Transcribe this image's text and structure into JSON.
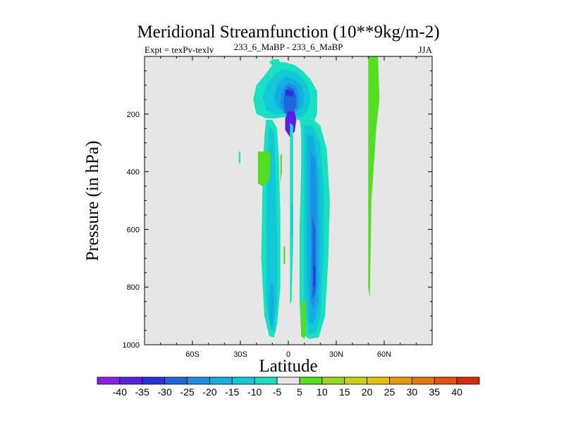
{
  "chart_data": {
    "type": "contour",
    "title": "Meridional Streamfunction (10**9kg/m-2)",
    "subtitle_left": "Expt = texPv-texlv",
    "subtitle_center": "233_6_MaBP - 233_6_MaBP",
    "subtitle_right": "JJA",
    "xlabel": "Latitude",
    "ylabel": "Pressure (in hPa)",
    "xlim": [
      -90,
      90
    ],
    "ylim": [
      0,
      1000
    ],
    "y_inverted": true,
    "x_ticks": [
      {
        "value": -60,
        "label": "60S"
      },
      {
        "value": -30,
        "label": "30S"
      },
      {
        "value": 0,
        "label": "0"
      },
      {
        "value": 30,
        "label": "30N"
      },
      {
        "value": 60,
        "label": "60N"
      }
    ],
    "y_ticks": [
      {
        "value": 200,
        "label": "200"
      },
      {
        "value": 400,
        "label": "400"
      },
      {
        "value": 600,
        "label": "600"
      },
      {
        "value": 800,
        "label": "800"
      },
      {
        "value": 1000,
        "label": "1000"
      }
    ],
    "colorbar": {
      "labels": [
        "-40",
        "-35",
        "-30",
        "-25",
        "-20",
        "-15",
        "-10",
        "-5",
        "5",
        "10",
        "15",
        "20",
        "25",
        "30",
        "35",
        "40"
      ],
      "colors": [
        "#8a1ee6",
        "#5a1ee6",
        "#2233e0",
        "#1f66dd",
        "#1e8fe3",
        "#14aee0",
        "#10c8d8",
        "#1ae0bf",
        "#e6e6e6",
        "#55dd22",
        "#9ad61c",
        "#c8d214",
        "#e3c20e",
        "#e89a0c",
        "#e6780c",
        "#e3520a",
        "#d82a06"
      ]
    },
    "background_color": "#e6e6e6",
    "fields": [
      {
        "name": "upper-cell-outer",
        "level": -5,
        "lat": [
          -7,
          -2,
          4,
          9,
          14,
          18,
          18,
          15,
          10,
          4,
          -2,
          -8,
          -14,
          -20,
          -22,
          -20,
          -14,
          -10
        ],
        "p": [
          20,
          20,
          30,
          50,
          80,
          120,
          200,
          240,
          230,
          215,
          210,
          215,
          215,
          200,
          150,
          100,
          60,
          30
        ]
      },
      {
        "name": "upper-cell-10",
        "level": -10,
        "lat": [
          -3,
          3,
          8,
          12,
          14,
          12,
          8,
          3,
          -3,
          -9,
          -14,
          -16,
          -13,
          -8
        ],
        "p": [
          45,
          50,
          70,
          100,
          140,
          190,
          210,
          205,
          200,
          200,
          185,
          140,
          90,
          60
        ]
      },
      {
        "name": "upper-cell-15",
        "level": -15,
        "lat": [
          -1,
          4,
          8,
          10,
          9,
          6,
          2,
          -3,
          -7,
          -9,
          -7,
          -4
        ],
        "p": [
          70,
          80,
          100,
          130,
          170,
          190,
          195,
          190,
          175,
          140,
          100,
          80
        ]
      },
      {
        "name": "upper-cell-20",
        "level": -20,
        "lat": [
          0,
          4,
          6,
          7,
          6,
          3,
          0,
          -3,
          -5,
          -4,
          -2
        ],
        "p": [
          95,
          100,
          120,
          150,
          180,
          200,
          205,
          195,
          160,
          120,
          100
        ]
      },
      {
        "name": "upper-cell-25",
        "level": -25,
        "lat": [
          0,
          3,
          5,
          5,
          3,
          0,
          -2,
          -3,
          -2
        ],
        "p": [
          105,
          112,
          135,
          170,
          195,
          210,
          195,
          155,
          120
        ]
      },
      {
        "name": "upper-cell-30",
        "level": -30,
        "lat": [
          -2,
          3,
          3,
          -2
        ],
        "p": [
          115,
          120,
          140,
          135
        ]
      },
      {
        "name": "upper-cell-35",
        "level": -35,
        "lat": [
          0,
          4,
          5,
          4,
          1,
          -2,
          -2
        ],
        "p": [
          190,
          192,
          220,
          260,
          280,
          255,
          215
        ]
      },
      {
        "name": "north-column-5",
        "level": -5,
        "lat": [
          7,
          14,
          20,
          24,
          26,
          25,
          23,
          19,
          13,
          8,
          7,
          7,
          8,
          8
        ],
        "p": [
          210,
          210,
          240,
          320,
          500,
          700,
          900,
          975,
          980,
          960,
          850,
          600,
          400,
          260
        ]
      },
      {
        "name": "north-column-10",
        "level": -10,
        "lat": [
          10,
          15,
          20,
          22,
          22,
          20,
          17,
          13,
          10,
          10,
          10
        ],
        "p": [
          240,
          240,
          300,
          450,
          700,
          900,
          960,
          960,
          850,
          600,
          350
        ]
      },
      {
        "name": "north-column-15",
        "level": -15,
        "lat": [
          12,
          16,
          19,
          20,
          19,
          16,
          13,
          12,
          12
        ],
        "p": [
          270,
          280,
          400,
          650,
          850,
          930,
          920,
          750,
          450
        ]
      },
      {
        "name": "north-column-20",
        "level": -20,
        "lat": [
          14,
          17,
          18,
          18,
          16,
          14,
          14
        ],
        "p": [
          330,
          360,
          550,
          800,
          880,
          850,
          550
        ]
      },
      {
        "name": "north-column-25",
        "level": -25,
        "lat": [
          15,
          17,
          17,
          15,
          15
        ],
        "p": [
          550,
          600,
          820,
          840,
          650
        ]
      },
      {
        "name": "north-column-30",
        "level": -30,
        "lat": [
          16,
          17,
          17,
          16
        ],
        "p": [
          720,
          730,
          800,
          800
        ]
      },
      {
        "name": "south-column-5",
        "level": -5,
        "lat": [
          -14,
          -10,
          -7,
          -6,
          -5,
          -5,
          -7,
          -9,
          -12,
          -15,
          -17,
          -16,
          -15
        ],
        "p": [
          220,
          220,
          250,
          350,
          550,
          800,
          930,
          975,
          970,
          900,
          700,
          400,
          280
        ]
      },
      {
        "name": "south-column-10",
        "level": -10,
        "lat": [
          -12,
          -9,
          -8,
          -7,
          -7,
          -9,
          -11,
          -14,
          -14,
          -13
        ],
        "p": [
          240,
          260,
          400,
          650,
          850,
          950,
          950,
          850,
          600,
          350
        ]
      },
      {
        "name": "south-column-15",
        "level": -15,
        "lat": [
          -11,
          -9,
          -9,
          -10,
          -12,
          -12
        ],
        "p": [
          780,
          800,
          880,
          940,
          920,
          850
        ]
      },
      {
        "name": "mid-column-5",
        "level": -5,
        "lat": [
          1,
          3,
          3,
          3,
          2,
          1,
          1
        ],
        "p": [
          230,
          240,
          400,
          650,
          850,
          860,
          500
        ]
      },
      {
        "name": "mid-column-10",
        "level": -10,
        "lat": [
          2,
          3,
          3,
          2,
          2
        ],
        "p": [
          500,
          520,
          600,
          640,
          560
        ]
      },
      {
        "name": "south-cap-5",
        "level": -5,
        "lat": [
          -10,
          -6,
          -5,
          -7,
          -10,
          -12
        ],
        "p": [
          10,
          10,
          25,
          30,
          30,
          20
        ]
      },
      {
        "name": "far-south-5",
        "level": -5,
        "lat": [
          -31,
          -30,
          -30,
          -31
        ],
        "p": [
          330,
          330,
          370,
          370
        ]
      },
      {
        "name": "green-patch-sw",
        "level": 5,
        "lat": [
          -19,
          -12,
          -11,
          -12,
          -16,
          -19
        ],
        "p": [
          330,
          330,
          350,
          430,
          450,
          440
        ]
      },
      {
        "name": "green-patch-mid",
        "level": 5,
        "lat": [
          -5,
          -4,
          -4,
          -5,
          -5
        ],
        "p": [
          340,
          340,
          400,
          440,
          400
        ]
      },
      {
        "name": "green-patch-small",
        "level": 5,
        "lat": [
          -3,
          -2,
          -2,
          -3
        ],
        "p": [
          660,
          660,
          720,
          720
        ]
      },
      {
        "name": "green-patch-low",
        "level": 5,
        "lat": [
          8,
          11,
          11,
          10,
          8
        ],
        "p": [
          850,
          850,
          960,
          980,
          970
        ]
      },
      {
        "name": "green-band-n",
        "level": 5,
        "lat": [
          50,
          56,
          57,
          55,
          52,
          51,
          50,
          50
        ],
        "p": [
          -20,
          -20,
          150,
          250,
          500,
          840,
          800,
          400
        ]
      }
    ]
  }
}
